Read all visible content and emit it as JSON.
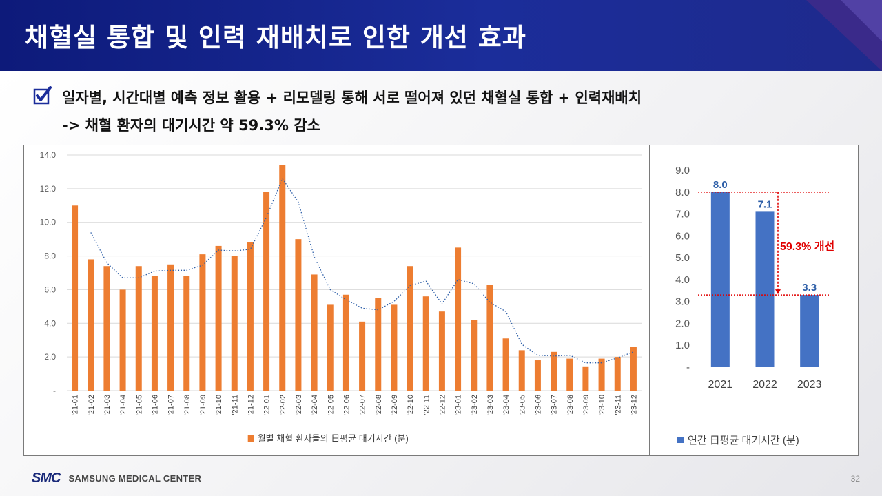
{
  "slide": {
    "title": "채혈실 통합 및 인력 재배치로 인한 개선 효과",
    "bullet_line1": "일자별, 시간대별 예측 정보 활용 + 리모델링 통해 서로 떨어져 있던 채혈실 통합 + 인력재배치",
    "bullet_line2": "-> 채혈 환자의 대기시간 약 59.3% 감소",
    "footer_brand": "SAMSUNG MEDICAL CENTER",
    "footer_logo": "SMC",
    "page_number": "32"
  },
  "chart_data": [
    {
      "type": "bar",
      "categories": [
        "'21-01",
        "'21-02",
        "'21-03",
        "'21-04",
        "'21-05",
        "'21-06",
        "'21-07",
        "'21-08",
        "'21-09",
        "'21-10",
        "'21-11",
        "'21-12",
        "'22-01",
        "'22-02",
        "'22-03",
        "'22-04",
        "'22-05",
        "'22-06",
        "'22-07",
        "'22-08",
        "'22-09",
        "'22-10",
        "'22-11",
        "'22-12",
        "'23-01",
        "'23-02",
        "'23-03",
        "'23-04",
        "'23-05",
        "'23-06",
        "'23-07",
        "'23-08",
        "'23-09",
        "'23-10",
        "'23-11",
        "'23-12"
      ],
      "series": [
        {
          "name": "월별 채혈 환자들의 日평균 대기시간 (분)",
          "color": "#ED7D31",
          "values": [
            11.0,
            7.8,
            7.4,
            6.0,
            7.4,
            6.8,
            7.5,
            6.8,
            8.1,
            8.6,
            8.0,
            8.8,
            11.8,
            13.4,
            9.0,
            6.9,
            5.1,
            5.7,
            4.1,
            5.5,
            5.1,
            7.4,
            5.6,
            4.7,
            8.5,
            4.2,
            6.3,
            3.1,
            2.4,
            1.8,
            2.3,
            1.9,
            1.4,
            1.9,
            2.0,
            2.6
          ]
        }
      ],
      "trendline": {
        "type": "2-period moving average",
        "color": "#2E5FA8",
        "style": "dotted"
      },
      "ylim": [
        0,
        14
      ],
      "yticks": [
        "-",
        "2.0",
        "4.0",
        "6.0",
        "8.0",
        "10.0",
        "12.0",
        "14.0"
      ],
      "legend": "bottom",
      "grid": true
    },
    {
      "type": "bar",
      "categories": [
        "2021",
        "2022",
        "2023"
      ],
      "series": [
        {
          "name": "연간 日평균 대기시간 (분)",
          "color": "#4472C4",
          "values": [
            8.0,
            7.1,
            3.3
          ]
        }
      ],
      "data_labels": [
        "8.0",
        "7.1",
        "3.3"
      ],
      "ylim": [
        0,
        9
      ],
      "yticks": [
        "-",
        "1.0",
        "2.0",
        "3.0",
        "4.0",
        "5.0",
        "6.0",
        "7.0",
        "8.0",
        "9.0"
      ],
      "annotation": "59.3% 개선",
      "annotation_color": "#E00000",
      "legend": "bottom",
      "grid": false
    }
  ]
}
